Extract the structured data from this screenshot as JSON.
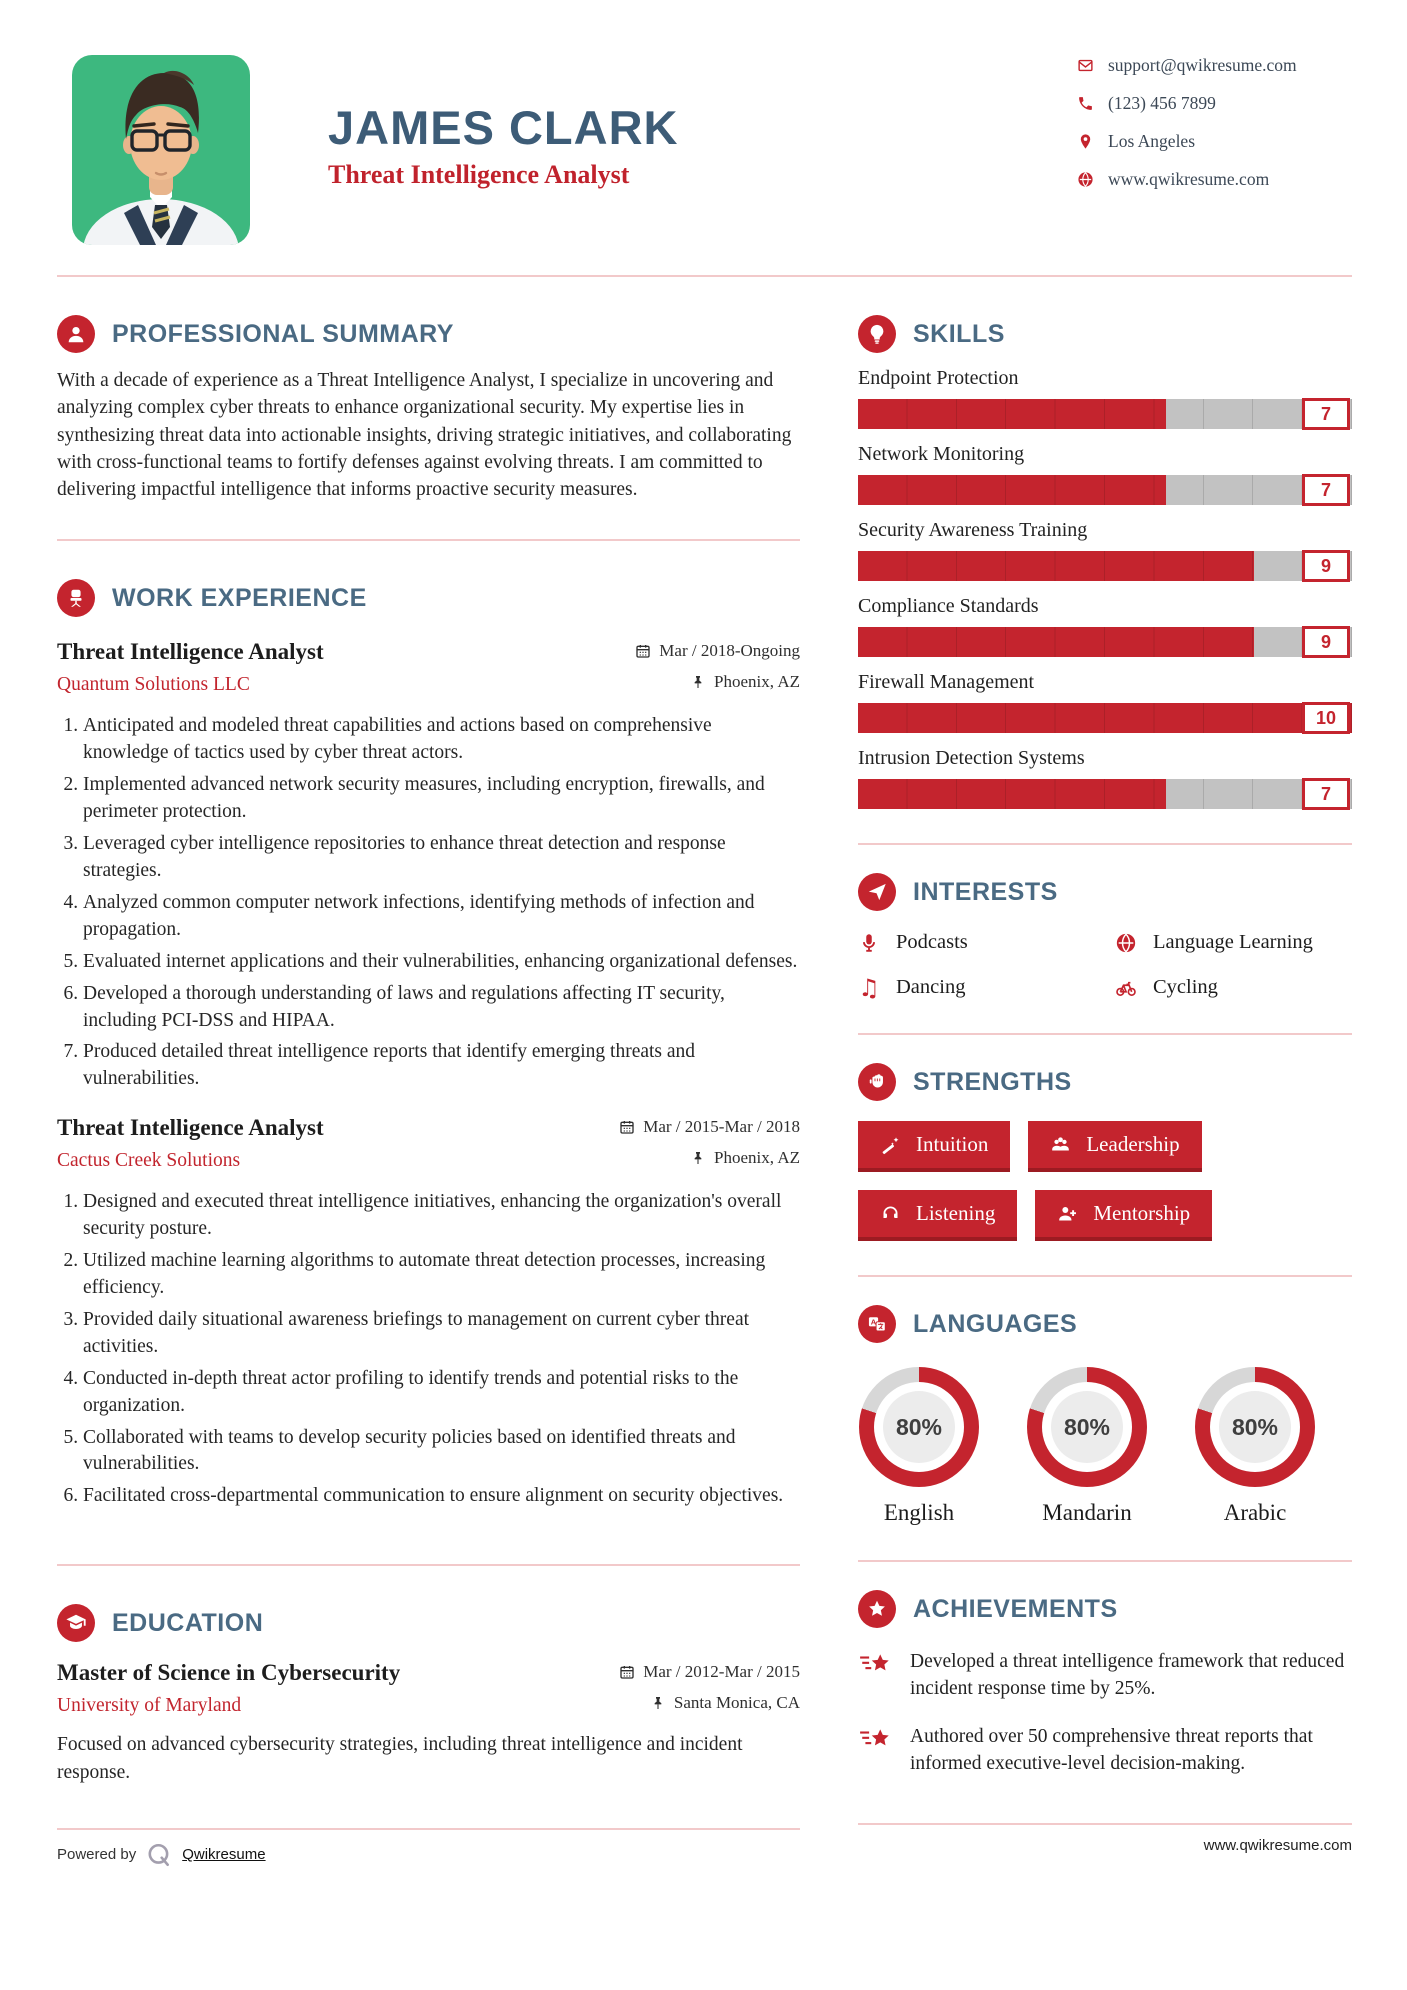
{
  "header": {
    "name": "JAMES CLARK",
    "title": "Threat Intelligence Analyst",
    "contact": {
      "email": "support@qwikresume.com",
      "phone": "(123) 456 7899",
      "location": "Los Angeles",
      "website": "www.qwikresume.com"
    }
  },
  "summary": {
    "heading": "PROFESSIONAL SUMMARY",
    "text": "With a decade of experience as a Threat Intelligence Analyst, I specialize in uncovering and analyzing complex cyber threats to enhance organizational security. My expertise lies in synthesizing threat data into actionable insights, driving strategic initiatives, and collaborating with cross-functional teams to fortify defenses against evolving threats. I am committed to delivering impactful intelligence that informs proactive security measures."
  },
  "work": {
    "heading": "WORK EXPERIENCE",
    "jobs": [
      {
        "title": "Threat Intelligence Analyst",
        "company": "Quantum Solutions LLC",
        "date": "Mar / 2018-Ongoing",
        "location": "Phoenix, AZ",
        "bullets": [
          "Anticipated and modeled threat capabilities and actions based on comprehensive knowledge of tactics used by cyber threat actors.",
          "Implemented advanced network security measures, including encryption, firewalls, and perimeter protection.",
          "Leveraged cyber intelligence repositories to enhance threat detection and response strategies.",
          "Analyzed common computer network infections, identifying methods of infection and propagation.",
          "Evaluated internet applications and their vulnerabilities, enhancing organizational defenses.",
          "Developed a thorough understanding of laws and regulations affecting IT security, including PCI-DSS and HIPAA.",
          "Produced detailed threat intelligence reports that identify emerging threats and vulnerabilities."
        ]
      },
      {
        "title": "Threat Intelligence Analyst",
        "company": "Cactus Creek Solutions",
        "date": "Mar / 2015-Mar / 2018",
        "location": "Phoenix, AZ",
        "bullets": [
          "Designed and executed threat intelligence initiatives, enhancing the organization's overall security posture.",
          "Utilized machine learning algorithms to automate threat detection processes, increasing efficiency.",
          "Provided daily situational awareness briefings to management on current cyber threat activities.",
          "Conducted in-depth threat actor profiling to identify trends and potential risks to the organization.",
          "Collaborated with teams to develop security policies based on identified threats and vulnerabilities.",
          "Facilitated cross-departmental communication to ensure alignment on security objectives."
        ]
      }
    ]
  },
  "education": {
    "heading": "EDUCATION",
    "degree": "Master of Science in Cybersecurity",
    "school": "University of Maryland",
    "date": "Mar / 2012-Mar / 2015",
    "location": "Santa Monica, CA",
    "description": "Focused on advanced cybersecurity strategies, including threat intelligence and incident response."
  },
  "skills": {
    "heading": "SKILLS",
    "max": 10,
    "items": [
      {
        "name": "Endpoint Protection",
        "value": 7
      },
      {
        "name": "Network Monitoring",
        "value": 7
      },
      {
        "name": "Security Awareness Training",
        "value": 9
      },
      {
        "name": "Compliance Standards",
        "value": 9
      },
      {
        "name": "Firewall Management",
        "value": 10
      },
      {
        "name": "Intrusion Detection Systems",
        "value": 7
      }
    ]
  },
  "interests": {
    "heading": "INTERESTS",
    "items": [
      {
        "icon": "microphone-icon",
        "label": "Podcasts"
      },
      {
        "icon": "globe-icon",
        "label": "Language Learning"
      },
      {
        "icon": "music-note-icon",
        "label": "Dancing"
      },
      {
        "icon": "bicycle-icon",
        "label": "Cycling"
      }
    ]
  },
  "strengths": {
    "heading": "STRENGTHS",
    "items": [
      {
        "icon": "magic-wand-icon",
        "label": "Intuition"
      },
      {
        "icon": "people-group-icon",
        "label": "Leadership"
      },
      {
        "icon": "headphones-icon",
        "label": "Listening"
      },
      {
        "icon": "person-plus-icon",
        "label": "Mentorship"
      }
    ]
  },
  "languages": {
    "heading": "LANGUAGES",
    "items": [
      {
        "name": "English",
        "percent": 80,
        "percent_label": "80%"
      },
      {
        "name": "Mandarin",
        "percent": 80,
        "percent_label": "80%"
      },
      {
        "name": "Arabic",
        "percent": 80,
        "percent_label": "80%"
      }
    ]
  },
  "achievements": {
    "heading": "ACHIEVEMENTS",
    "items": [
      "Developed a threat intelligence framework that reduced incident response time by 25%.",
      "Authored over 50 comprehensive threat reports that informed executive-level decision-making."
    ]
  },
  "footer": {
    "powered_by": "Powered by",
    "brand": "Qwikresume",
    "website": "www.qwikresume.com"
  },
  "colors": {
    "accent": "#c4242e",
    "accent_dark": "#9c1b22",
    "heading_blue": "#4a6a83",
    "name_blue": "#3d5c77",
    "divider_pink": "#f2c9ca",
    "bar_track_gray": "#c2c2c2",
    "photo_background_green": "#3db87f"
  }
}
